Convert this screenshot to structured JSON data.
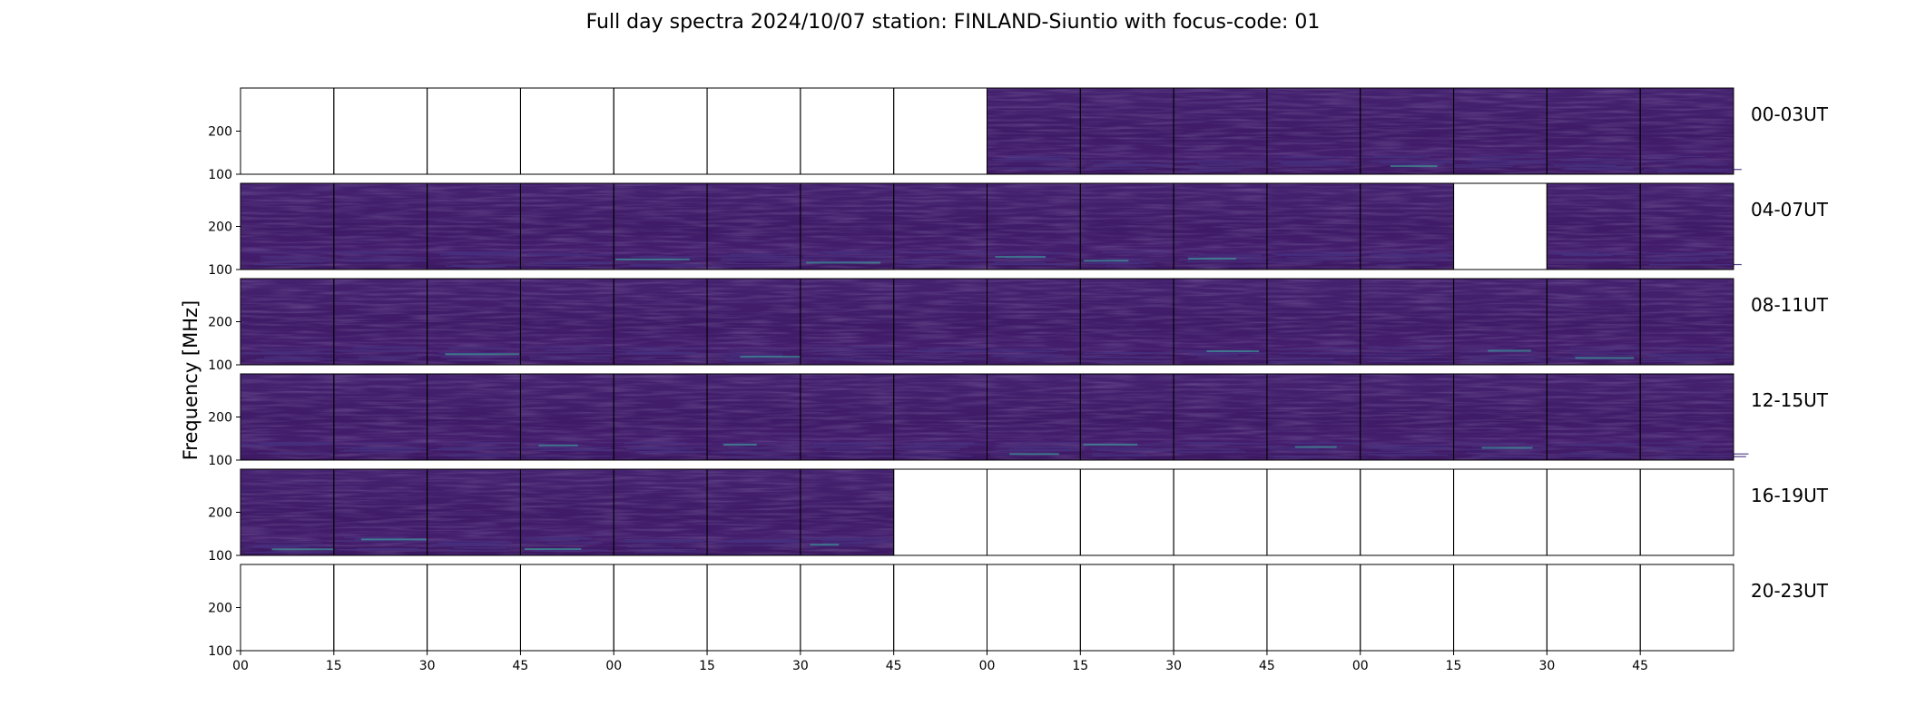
{
  "chart_data": {
    "type": "heatmap",
    "title": "Full day spectra 2024/10/07 station: FINLAND-Siuntio with focus-code: 01",
    "ylabel": "Frequency [MHz]",
    "xlabel": "",
    "ylim": [
      100,
      300
    ],
    "ytick_labels": [
      "100",
      "200"
    ],
    "x_tick_labels": [
      "00",
      "15",
      "30",
      "45",
      "00",
      "15",
      "30",
      "45",
      "00",
      "15",
      "30",
      "45",
      "00",
      "15",
      "30",
      "45"
    ],
    "panels_per_row": 16,
    "minutes_per_panel": 15,
    "colormap": "viridis",
    "rows": [
      {
        "label": "00-03UT",
        "availability": [
          0,
          0,
          0,
          0,
          0,
          0,
          0,
          0,
          1,
          1,
          1,
          1,
          1,
          1,
          1,
          1
        ]
      },
      {
        "label": "04-07UT",
        "availability": [
          1,
          1,
          1,
          1,
          1,
          1,
          1,
          1,
          1,
          1,
          1,
          1,
          1,
          0,
          1,
          1
        ]
      },
      {
        "label": "08-11UT",
        "availability": [
          1,
          1,
          1,
          1,
          1,
          1,
          1,
          1,
          1,
          1,
          1,
          1,
          1,
          1,
          1,
          1
        ]
      },
      {
        "label": "12-15UT",
        "availability": [
          1,
          1,
          1,
          1,
          1,
          1,
          1,
          1,
          1,
          1,
          1,
          1,
          1,
          1,
          1,
          1
        ]
      },
      {
        "label": "16-19UT",
        "availability": [
          1,
          1,
          1,
          1,
          1,
          1,
          1,
          0,
          0,
          0,
          0,
          0,
          0,
          0,
          0,
          0
        ]
      },
      {
        "label": "20-23UT",
        "availability": [
          0,
          0,
          0,
          0,
          0,
          0,
          0,
          0,
          0,
          0,
          0,
          0,
          0,
          0,
          0,
          0
        ]
      }
    ],
    "colors": {
      "background_low": "#3f1a68",
      "background_mid": "#46307e",
      "emission": "#3ab5a0",
      "empty_panel": "#ffffff",
      "frame": "#000000"
    }
  }
}
